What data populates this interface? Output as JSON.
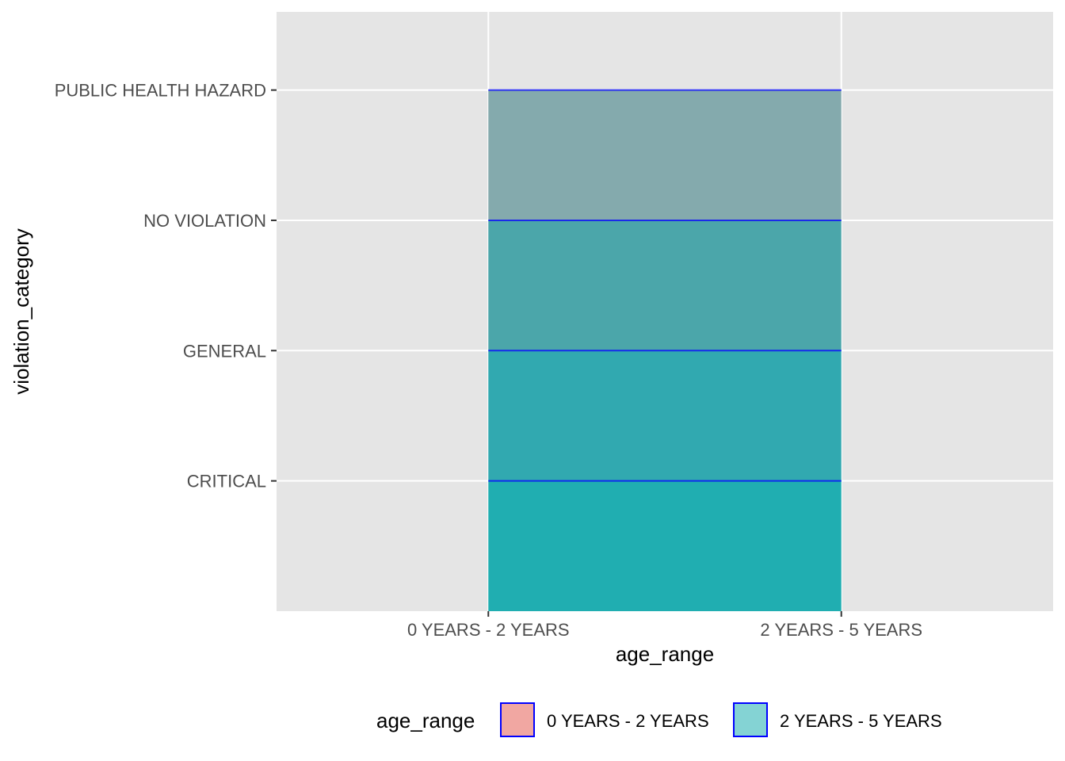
{
  "chart_data": {
    "type": "area",
    "title": "",
    "xlabel": "age_range",
    "ylabel": "violation_category",
    "x_categories": [
      "0 YEARS - 2 YEARS",
      "2 YEARS - 5 YEARS"
    ],
    "y_categories": [
      "CRITICAL",
      "GENERAL",
      "NO VIOLATION",
      "PUBLIC HEALTH HAZARD"
    ],
    "bands": [
      {
        "from": "baseline",
        "to": "CRITICAL",
        "fill": "#20AEB1"
      },
      {
        "from": "CRITICAL",
        "to": "GENERAL",
        "fill": "#31A9B0"
      },
      {
        "from": "GENERAL",
        "to": "NO VIOLATION",
        "fill": "#4BA6AA"
      },
      {
        "from": "NO VIOLATION",
        "to": "PUBLIC HEALTH HAZARD",
        "fill": "#84AAAD"
      }
    ],
    "band_outline_color": "#0000FF",
    "legend": {
      "title": "age_range",
      "position": "bottom",
      "entries": [
        {
          "label": "0 YEARS - 2 YEARS",
          "fill": "#F1A7A2",
          "outline": "#0000FF"
        },
        {
          "label": "2 YEARS - 5 YEARS",
          "fill": "#84D3D4",
          "outline": "#0000FF"
        }
      ]
    },
    "grid": true,
    "panel_background": "#E5E5E5",
    "grid_color": "#FFFFFF"
  }
}
